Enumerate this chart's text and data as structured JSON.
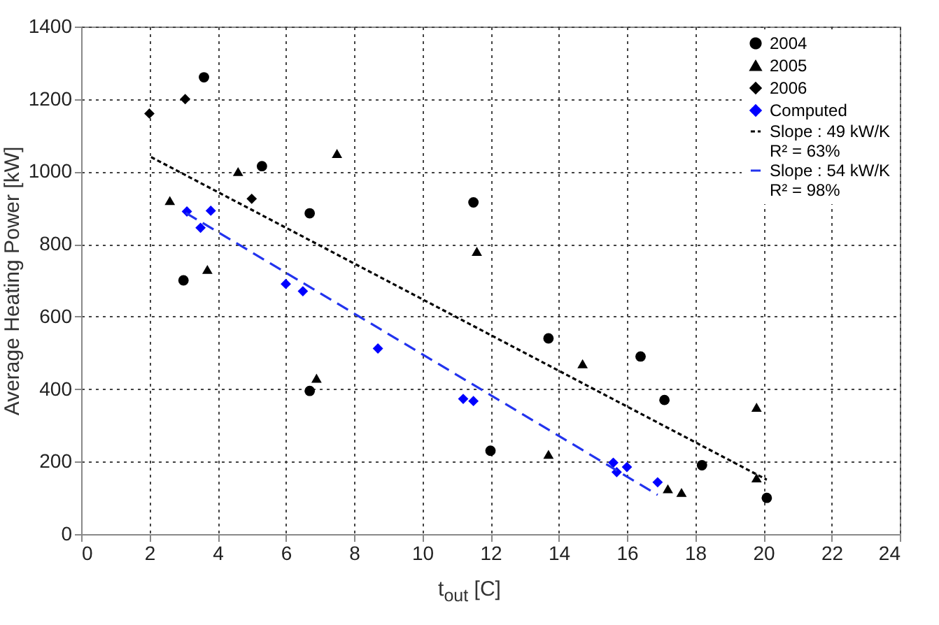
{
  "chart_data": {
    "type": "scatter",
    "xlabel": "t$_{out}$ [C]",
    "ylabel": "Average Heating Power [kW]",
    "xlim": [
      0,
      24
    ],
    "xticks": [
      0,
      2,
      4,
      6,
      8,
      10,
      12,
      14,
      16,
      18,
      20,
      22,
      24
    ],
    "ylim": [
      0,
      1400
    ],
    "yticks": [
      0,
      200,
      400,
      600,
      800,
      1000,
      1200,
      1400
    ],
    "grid": true,
    "legend": "top right",
    "series": [
      {
        "name": "2004",
        "marker": "circle",
        "color": "#000000",
        "x": [
          3.0,
          3.6,
          5.3,
          6.7,
          6.7,
          11.5,
          12.0,
          13.7,
          16.4,
          17.1,
          18.2,
          20.1
        ],
        "values": [
          700,
          1260,
          1015,
          885,
          395,
          915,
          230,
          540,
          490,
          370,
          190,
          100
        ]
      },
      {
        "name": "2005",
        "marker": "triangle",
        "color": "#000000",
        "x": [
          2.6,
          3.7,
          4.6,
          6.9,
          7.5,
          11.6,
          13.7,
          14.7,
          17.2,
          17.6,
          19.8,
          19.8
        ],
        "values": [
          920,
          730,
          1000,
          430,
          1050,
          780,
          220,
          470,
          125,
          115,
          350,
          155
        ]
      },
      {
        "name": "2006",
        "marker": "diamond",
        "color": "#000000",
        "x": [
          2.0,
          3.05,
          5.0
        ],
        "values": [
          1160,
          1200,
          925
        ]
      },
      {
        "name": "Computed",
        "marker": "diamond",
        "color": "#0000ff",
        "x": [
          3.1,
          3.5,
          3.8,
          6.0,
          6.5,
          8.7,
          11.2,
          11.5,
          15.6,
          15.7,
          16.0,
          16.9
        ],
        "values": [
          890,
          845,
          892,
          690,
          670,
          512,
          373,
          367,
          197,
          171,
          185,
          143
        ]
      },
      {
        "name": "Slope : 49 kW/K\nR² = 63%",
        "type": "line",
        "line_style": "dotted",
        "color": "#000000",
        "x": [
          2.05,
          20.1
        ],
        "values": [
          1040,
          150
        ]
      },
      {
        "name": "Slope : 54 kW/K\nR² = 98%",
        "type": "line",
        "line_style": "dashed",
        "color": "#2233ee",
        "x": [
          3.07,
          16.9
        ],
        "values": [
          886,
          108
        ]
      }
    ]
  }
}
